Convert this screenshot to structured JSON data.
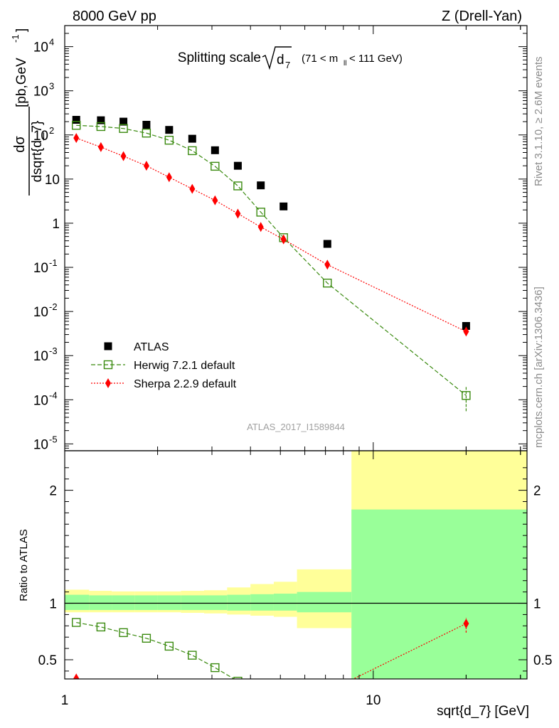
{
  "header": {
    "left_label": "8000 GeV pp",
    "right_label": "Z (Drell-Yan)"
  },
  "title": {
    "prefix": "Splitting scale",
    "symbol": "d",
    "symbol_sub": "7",
    "cut_pre": "(71 < m",
    "cut_sub": "ll",
    "cut_post": " < 111 GeV)"
  },
  "y_label_top": {
    "numerator": "dσ",
    "denominator": "dsqrt{d_7}",
    "units_pre": "[pb,GeV",
    "units_sup": "-1",
    "units_post": "]"
  },
  "ratio_ylabel": "Ratio to ATLAS",
  "xlabel": "sqrt{d_7} [GeV]",
  "analysis_id": "ATLAS_2017_I1589844",
  "side_labels": {
    "rivet": "Rivet 3.1.10, ≥ 2.6M events",
    "mcplots": "mcplots.cern.ch [arXiv:1306.3436]"
  },
  "colors": {
    "atlas": "#000000",
    "herwig": "#3a8a0f",
    "sherpa": "#ff0000",
    "band_inner": "#99ff99",
    "band_outer": "#ffff99"
  },
  "legend": [
    {
      "key": "atlas",
      "label": "ATLAS"
    },
    {
      "key": "herwig",
      "label": "Herwig 7.2.1 default"
    },
    {
      "key": "sherpa",
      "label": "Sherpa 2.2.9 default"
    }
  ],
  "chart_data": {
    "type": "scatter",
    "x_scale": "log",
    "xlim": [
      1.0,
      31.5
    ],
    "x_ticks": [
      {
        "v": 1,
        "label": "1"
      },
      {
        "v": 10,
        "label": "10"
      }
    ],
    "top_panel": {
      "y_scale": "log",
      "ylim": [
        7e-06,
        30000.0
      ],
      "y_ticks": [
        {
          "v": 1e-05,
          "base": "10",
          "exp": "-5"
        },
        {
          "v": 0.0001,
          "base": "10",
          "exp": "-4"
        },
        {
          "v": 0.001,
          "base": "10",
          "exp": "-3"
        },
        {
          "v": 0.01,
          "base": "10",
          "exp": "-2"
        },
        {
          "v": 0.1,
          "base": "10",
          "exp": "-1"
        },
        {
          "v": 1,
          "base": "1",
          "exp": ""
        },
        {
          "v": 10,
          "base": "10",
          "exp": ""
        },
        {
          "v": 100,
          "base": "10",
          "exp": "2"
        },
        {
          "v": 1000,
          "base": "10",
          "exp": "3"
        },
        {
          "v": 10000,
          "base": "10",
          "exp": "4"
        }
      ],
      "series": [
        {
          "name": "ATLAS",
          "key": "atlas",
          "x": [
            1.09,
            1.31,
            1.55,
            1.84,
            2.18,
            2.59,
            3.07,
            3.64,
            4.32,
            5.12,
            7.1,
            20.0
          ],
          "y": [
            220,
            215,
            200,
            170,
            130,
            82,
            45,
            20,
            7.2,
            2.4,
            0.34,
            0.0047
          ]
        },
        {
          "name": "Herwig 7.2.1 default",
          "key": "herwig",
          "x": [
            1.09,
            1.31,
            1.55,
            1.84,
            2.18,
            2.59,
            3.07,
            3.64,
            4.32,
            5.12,
            7.1,
            20.0
          ],
          "y": [
            165,
            155,
            140,
            110,
            76,
            44,
            19.5,
            7.0,
            1.78,
            0.47,
            0.044,
            0.000125
          ],
          "y_err_last": [
            5.5e-05,
            0.0002
          ]
        },
        {
          "name": "Sherpa 2.2.9 default",
          "key": "sherpa",
          "x": [
            1.09,
            1.31,
            1.55,
            1.84,
            2.18,
            2.59,
            3.07,
            3.64,
            4.32,
            5.12,
            7.1,
            20.0
          ],
          "y": [
            85,
            53,
            33,
            20,
            11,
            6.0,
            3.3,
            1.65,
            0.82,
            0.43,
            0.115,
            0.0035
          ]
        }
      ]
    },
    "ratio_panel": {
      "ylim": [
        0.33,
        2.35
      ],
      "y_ticks": [
        {
          "v": 0.5,
          "label": "0.5"
        },
        {
          "v": 1,
          "label": "1"
        },
        {
          "v": 2,
          "label": "2"
        }
      ],
      "bands": [
        {
          "x0": 1.0,
          "x1": 1.2,
          "inner": [
            0.94,
            1.075
          ],
          "outer": [
            0.92,
            1.12
          ]
        },
        {
          "x0": 1.2,
          "x1": 1.42,
          "inner": [
            0.94,
            1.07
          ],
          "outer": [
            0.92,
            1.11
          ]
        },
        {
          "x0": 1.42,
          "x1": 1.69,
          "inner": [
            0.94,
            1.07
          ],
          "outer": [
            0.92,
            1.105
          ]
        },
        {
          "x0": 1.69,
          "x1": 2.0,
          "inner": [
            0.94,
            1.07
          ],
          "outer": [
            0.92,
            1.105
          ]
        },
        {
          "x0": 2.0,
          "x1": 2.38,
          "inner": [
            0.94,
            1.07
          ],
          "outer": [
            0.92,
            1.105
          ]
        },
        {
          "x0": 2.38,
          "x1": 2.83,
          "inner": [
            0.94,
            1.07
          ],
          "outer": [
            0.915,
            1.11
          ]
        },
        {
          "x0": 2.83,
          "x1": 3.36,
          "inner": [
            0.94,
            1.07
          ],
          "outer": [
            0.91,
            1.115
          ]
        },
        {
          "x0": 3.36,
          "x1": 4.0,
          "inner": [
            0.935,
            1.075
          ],
          "outer": [
            0.9,
            1.14
          ]
        },
        {
          "x0": 4.0,
          "x1": 4.76,
          "inner": [
            0.935,
            1.08
          ],
          "outer": [
            0.89,
            1.17
          ]
        },
        {
          "x0": 4.76,
          "x1": 5.66,
          "inner": [
            0.935,
            1.085
          ],
          "outer": [
            0.88,
            1.19
          ]
        },
        {
          "x0": 5.66,
          "x1": 8.5,
          "inner": [
            0.92,
            1.1
          ],
          "outer": [
            0.78,
            1.3
          ]
        },
        {
          "x0": 8.5,
          "x1": 31.5,
          "inner": [
            0.33,
            1.83
          ],
          "outer": [
            0.33,
            2.35
          ]
        }
      ],
      "series": [
        {
          "name": "Herwig 7.2.1 default",
          "key": "herwig",
          "x": [
            1.09,
            1.31,
            1.55,
            1.84,
            2.18,
            2.59,
            3.07,
            3.64
          ],
          "y": [
            0.83,
            0.79,
            0.74,
            0.69,
            0.62,
            0.54,
            0.43,
            0.31
          ]
        },
        {
          "name": "Sherpa 2.2.9 default",
          "key": "sherpa",
          "x": [
            1.09,
            8.7,
            20.0
          ],
          "y": [
            0.335,
            0.335,
            0.82
          ],
          "y_err_last": [
            0.74,
            0.87
          ]
        }
      ]
    }
  }
}
